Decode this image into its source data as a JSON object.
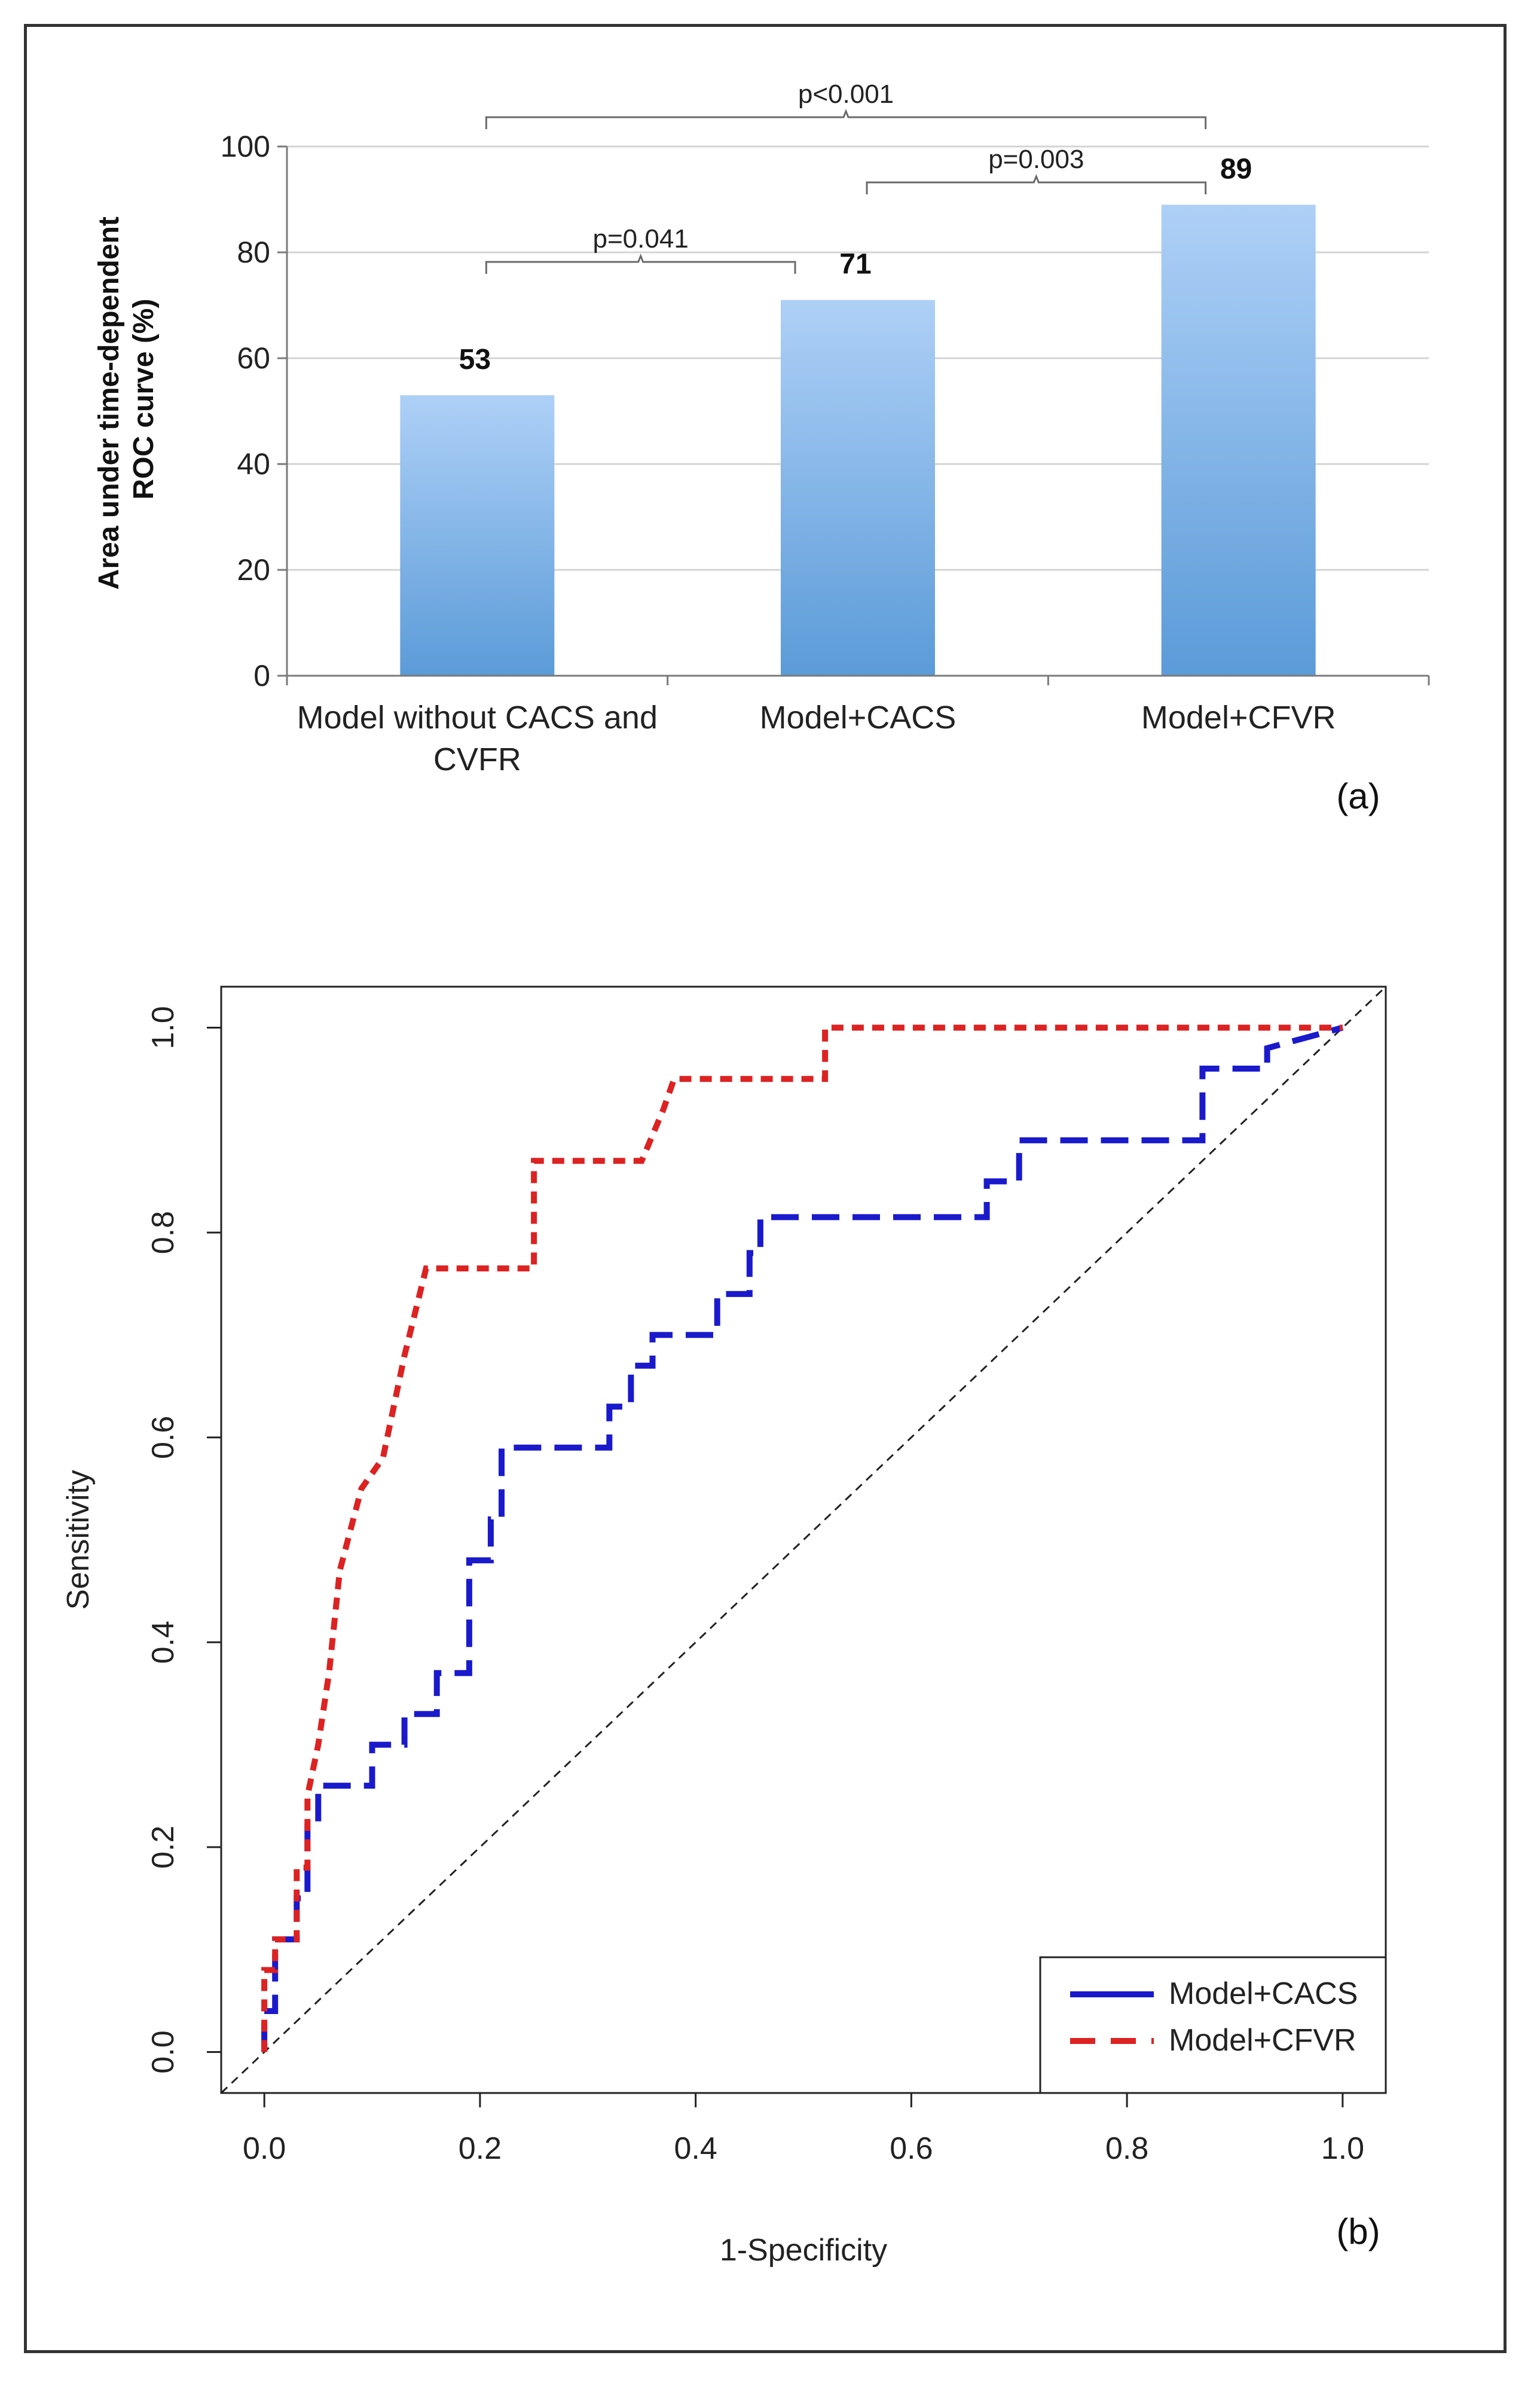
{
  "chart_data": [
    {
      "type": "bar",
      "panel": "(a)",
      "ylabel_line1": "Area under time-dependent",
      "ylabel_line2": "ROC curve (%)",
      "ylim": [
        0,
        100
      ],
      "yticks": [
        0,
        20,
        40,
        60,
        80,
        100
      ],
      "grid": true,
      "categories": [
        {
          "line1": "Model without CACS and",
          "line2": "CVFR"
        },
        {
          "line1": "Model+CACS",
          "line2": ""
        },
        {
          "line1": "Model+CFVR",
          "line2": ""
        }
      ],
      "values": [
        53,
        71,
        89
      ],
      "data_labels": [
        "53",
        "71",
        "89"
      ],
      "bar_color_top": "#aed0f7",
      "bar_color_bottom": "#5b9bd8",
      "comparisons": [
        {
          "from": 0,
          "to": 1,
          "label": "p=0.041"
        },
        {
          "from": 1,
          "to": 2,
          "label": "p=0.003"
        },
        {
          "from": 0,
          "to": 2,
          "label": "p<0.001"
        }
      ]
    },
    {
      "type": "line",
      "panel": "(b)",
      "xlabel": "1-Specificity",
      "ylabel": "Sensitivity",
      "xlim": [
        0,
        1
      ],
      "ylim": [
        0,
        1
      ],
      "xticks": [
        "0.0",
        "0.2",
        "0.4",
        "0.6",
        "0.8",
        "1.0"
      ],
      "yticks": [
        "0.0",
        "0.2",
        "0.4",
        "0.6",
        "0.8",
        "1.0"
      ],
      "legend_position": "bottom-right",
      "diagonal": true,
      "series": [
        {
          "name": "Model+CACS",
          "color": "#1a1acc",
          "style": "long-dash",
          "points": [
            [
              0.0,
              0.0
            ],
            [
              0.0,
              0.04
            ],
            [
              0.01,
              0.04
            ],
            [
              0.01,
              0.11
            ],
            [
              0.03,
              0.11
            ],
            [
              0.03,
              0.15
            ],
            [
              0.04,
              0.15
            ],
            [
              0.04,
              0.22
            ],
            [
              0.05,
              0.22
            ],
            [
              0.05,
              0.26
            ],
            [
              0.1,
              0.26
            ],
            [
              0.1,
              0.3
            ],
            [
              0.13,
              0.3
            ],
            [
              0.13,
              0.33
            ],
            [
              0.16,
              0.33
            ],
            [
              0.16,
              0.37
            ],
            [
              0.19,
              0.37
            ],
            [
              0.19,
              0.48
            ],
            [
              0.21,
              0.48
            ],
            [
              0.21,
              0.52
            ],
            [
              0.22,
              0.52
            ],
            [
              0.22,
              0.59
            ],
            [
              0.32,
              0.59
            ],
            [
              0.32,
              0.63
            ],
            [
              0.34,
              0.63
            ],
            [
              0.34,
              0.67
            ],
            [
              0.36,
              0.67
            ],
            [
              0.36,
              0.7
            ],
            [
              0.42,
              0.7
            ],
            [
              0.42,
              0.74
            ],
            [
              0.45,
              0.74
            ],
            [
              0.45,
              0.78
            ],
            [
              0.46,
              0.78
            ],
            [
              0.46,
              0.815
            ],
            [
              0.67,
              0.815
            ],
            [
              0.67,
              0.85
            ],
            [
              0.7,
              0.85
            ],
            [
              0.7,
              0.89
            ],
            [
              0.87,
              0.89
            ],
            [
              0.87,
              0.96
            ],
            [
              0.93,
              0.96
            ],
            [
              0.93,
              0.98
            ],
            [
              1.0,
              1.0
            ]
          ]
        },
        {
          "name": "Model+CFVR",
          "color": "#dd2222",
          "style": "short-dash",
          "points": [
            [
              0.0,
              0.0
            ],
            [
              0.0,
              0.08
            ],
            [
              0.01,
              0.08
            ],
            [
              0.01,
              0.11
            ],
            [
              0.03,
              0.11
            ],
            [
              0.03,
              0.18
            ],
            [
              0.04,
              0.18
            ],
            [
              0.04,
              0.25
            ],
            [
              0.05,
              0.3
            ],
            [
              0.06,
              0.37
            ],
            [
              0.07,
              0.47
            ],
            [
              0.08,
              0.51
            ],
            [
              0.09,
              0.55
            ],
            [
              0.11,
              0.58
            ],
            [
              0.12,
              0.63
            ],
            [
              0.13,
              0.68
            ],
            [
              0.15,
              0.765
            ],
            [
              0.25,
              0.765
            ],
            [
              0.25,
              0.87
            ],
            [
              0.35,
              0.87
            ],
            [
              0.37,
              0.92
            ],
            [
              0.38,
              0.95
            ],
            [
              0.52,
              0.95
            ],
            [
              0.52,
              1.0
            ],
            [
              1.0,
              1.0
            ]
          ]
        }
      ]
    }
  ]
}
